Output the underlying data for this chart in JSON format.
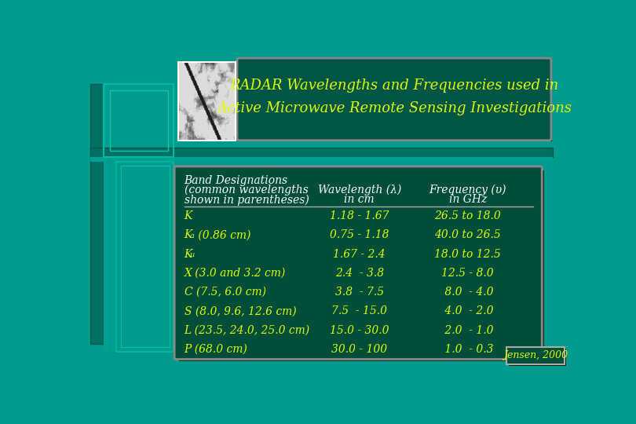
{
  "bg_color": "#009B8C",
  "title_text_line1": "RADAR Wavelengths and Frequencies used in",
  "title_text_line2": "Active Microwave Remote Sensing Investigations",
  "title_color": "#DDFF00",
  "title_box_bg": "#005544",
  "title_box_border": "#AAAAAA",
  "table_bg": "#004D3A",
  "table_text_color": "#DDFF00",
  "header_white_color": "#FFFFFF",
  "rows_wavelength": [
    "1.18 - 1.67",
    "0.75 - 1.18",
    "1.67 - 2.4",
    "2.4  - 3.8",
    "3.8  - 7.5",
    "7.5  - 15.0",
    "15.0 - 30.0",
    "30.0 - 100"
  ],
  "rows_frequency": [
    "26.5 to 18.0",
    "40.0 to 26.5",
    "18.0 to 12.5",
    "12.5 - 8.0",
    " 8.0  - 4.0",
    " 4.0  - 2.0",
    " 2.0  - 1.0",
    " 1.0  - 0.3"
  ],
  "citation": "Jensen, 2000",
  "deco_outer": "#007A6E",
  "deco_inner": "#00A898",
  "deco_dark": "#006055"
}
